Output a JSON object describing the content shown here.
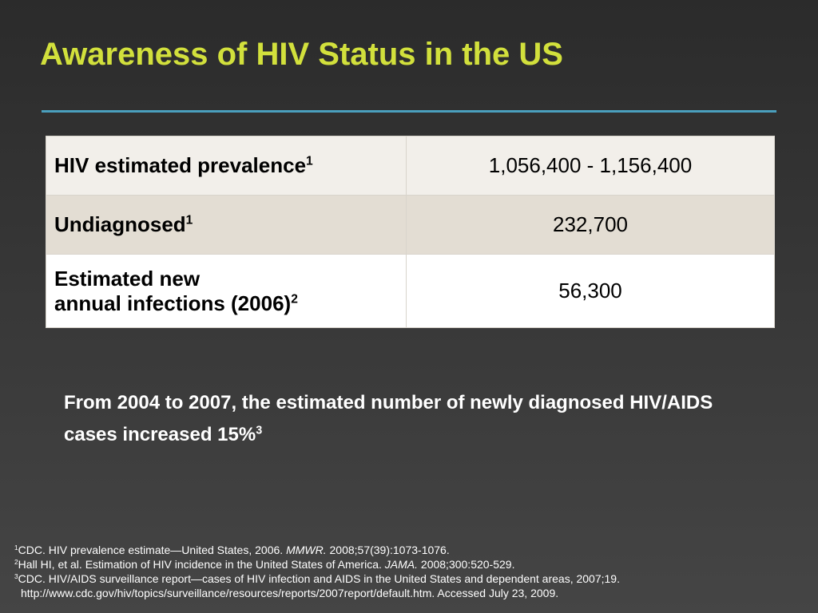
{
  "title": "Awareness of HIV Status in the US",
  "table": {
    "rows": [
      [
        {
          "text": "HIV estimated prevalence",
          "sup": "1"
        },
        "1,056,400 - 1,156,400"
      ],
      [
        {
          "text": "Undiagnosed",
          "sup": "1"
        },
        "232,700"
      ],
      [
        {
          "lines": [
            "Estimated new",
            "annual infections (2006)"
          ],
          "sup": "2"
        },
        "56,300"
      ]
    ]
  },
  "note": {
    "text": "From 2004 to 2007, the estimated number of newly diagnosed HIV/AIDS cases increased 15%",
    "sup": "3"
  },
  "references": [
    {
      "marker": "1",
      "parts": [
        "CDC. HIV prevalence estimate—United States, 2006.",
        "MMWR.",
        "2008;57(39):1073-1076."
      ]
    },
    {
      "marker": "2",
      "parts": [
        "Hall HI, et al. Estimation of HIV incidence in the United States of America.",
        "JAMA.",
        "2008;300:520-529."
      ]
    },
    {
      "marker": "3",
      "parts": [
        "CDC. HIV/AIDS surveillance report—cases of HIV infection and AIDS in the United States and dependent areas, 2007;19.",
        "http://www.cdc.gov/hiv/topics/surveillance/resources/reports/2007report/default.htm. Accessed July 23, 2009."
      ]
    }
  ]
}
